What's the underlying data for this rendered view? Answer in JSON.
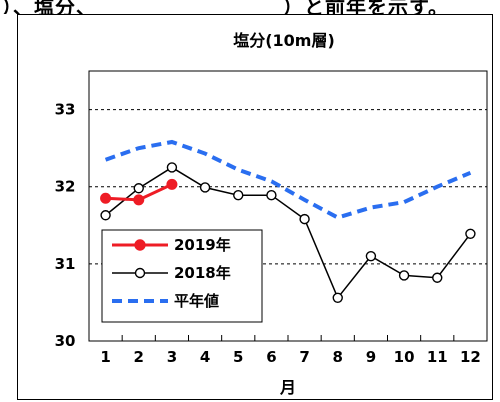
{
  "header_fragment": {
    "left": "）、塩分、",
    "right": "）と前年を示す。"
  },
  "chart_data": {
    "type": "line",
    "title": "塩分(10m層)",
    "xlabel": "月",
    "ylabel": "",
    "categories": [
      "1",
      "2",
      "3",
      "4",
      "5",
      "6",
      "7",
      "8",
      "9",
      "10",
      "11",
      "12"
    ],
    "ylim": [
      30,
      33.5
    ],
    "yticks": [
      "30",
      "31",
      "32",
      "33"
    ],
    "grid": "dashed horizontal at 31, 32, 33",
    "legend_position": "bottom-left",
    "series": [
      {
        "name": "2019年",
        "color": "#ee1c25",
        "style": "solid-filled-marker",
        "values": [
          31.85,
          31.83,
          32.03,
          null,
          null,
          null,
          null,
          null,
          null,
          null,
          null,
          null
        ]
      },
      {
        "name": "2018年",
        "color": "#000000",
        "style": "solid-hollow-marker",
        "values": [
          31.63,
          31.98,
          32.25,
          31.99,
          31.89,
          31.89,
          31.58,
          30.56,
          31.1,
          30.85,
          30.82,
          31.39
        ]
      },
      {
        "name": "平年値",
        "color": "#2a6ef0",
        "style": "dashed",
        "values": [
          32.35,
          32.5,
          32.58,
          32.43,
          32.22,
          32.07,
          31.83,
          31.6,
          31.73,
          31.8,
          32.0,
          32.18
        ]
      }
    ]
  }
}
